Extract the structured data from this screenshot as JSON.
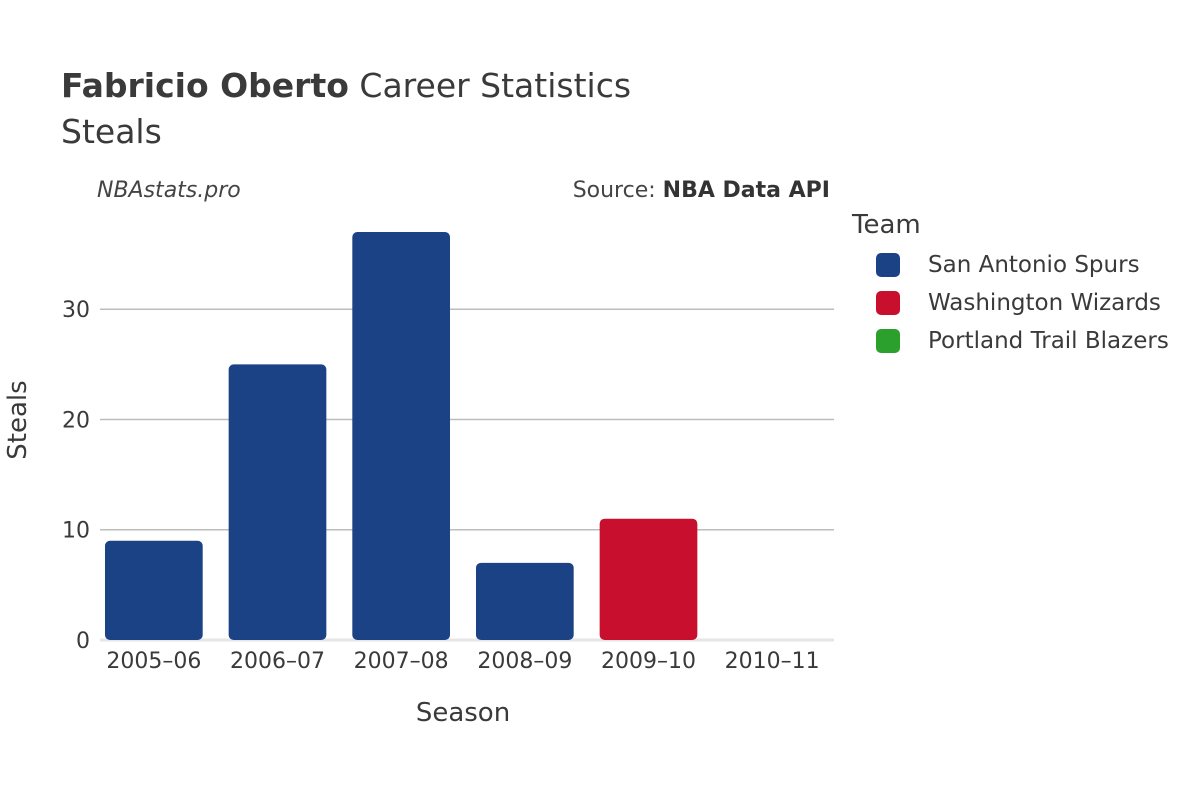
{
  "title": {
    "name": "Fabricio Oberto",
    "suffix": "Career Statistics",
    "subtitle": "Steals"
  },
  "watermark": "NBAstats.pro",
  "source": {
    "prefix": "Source: ",
    "name": "NBA Data API"
  },
  "legend": {
    "title": "Team",
    "items": [
      {
        "label": "San Antonio Spurs",
        "color": "#1c4286"
      },
      {
        "label": "Washington Wizards",
        "color": "#c8102e"
      },
      {
        "label": "Portland Trail Blazers",
        "color": "#2ca02c"
      }
    ]
  },
  "chart_data": {
    "type": "bar",
    "xlabel": "Season",
    "ylabel": "Steals",
    "ylim": [
      0,
      39
    ],
    "yticks": [
      0,
      10,
      20,
      30
    ],
    "grid": true,
    "legend_position": "right",
    "categories": [
      "2005–06",
      "2006–07",
      "2007–08",
      "2008–09",
      "2009–10",
      "2010–11"
    ],
    "bars": [
      {
        "season": "2005–06",
        "team": "San Antonio Spurs",
        "value": 9,
        "color": "#1c4286"
      },
      {
        "season": "2006–07",
        "team": "San Antonio Spurs",
        "value": 25,
        "color": "#1c4286"
      },
      {
        "season": "2007–08",
        "team": "San Antonio Spurs",
        "value": 37,
        "color": "#1c4286"
      },
      {
        "season": "2008–09",
        "team": "San Antonio Spurs",
        "value": 7,
        "color": "#1c4286"
      },
      {
        "season": "2009–10",
        "team": "Washington Wizards",
        "value": 11,
        "color": "#c8102e"
      },
      {
        "season": "2010–11",
        "team": "Portland Trail Blazers",
        "value": 0,
        "color": "#2ca02c"
      }
    ]
  }
}
